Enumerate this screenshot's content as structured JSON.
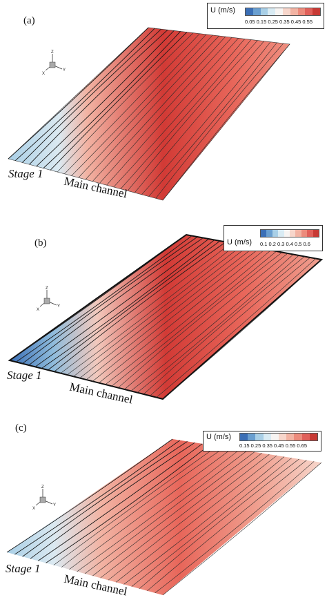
{
  "panels": [
    {
      "letter": "(a)",
      "stage_label": "Stage 1",
      "channel_label": "Main channel",
      "legend_title": "U (m/s)",
      "legend_ticks": "0.05  0.15  0.25  0.35  0.45  0.55"
    },
    {
      "letter": "(b)",
      "stage_label": "Stage 1",
      "channel_label": "Main channel",
      "legend_title": "U (m/s)",
      "legend_ticks": "0.1 0.2 0.3 0.4 0.5 0.6"
    },
    {
      "letter": "(c)",
      "stage_label": "Stage 1",
      "channel_label": "Main channel",
      "legend_title": "U (m/s)",
      "legend_ticks": "0.15  0.25  0.35  0.45  0.55  0.65"
    }
  ],
  "axis_labels": {
    "z": "Z",
    "y": "Y",
    "x": "X"
  },
  "colors": {
    "blue_dark": "#3b6fb6",
    "blue_light": "#a9cfe6",
    "white": "#f4f1ef",
    "red_light": "#f2b3a3",
    "red_mid": "#e8665a",
    "red_dark": "#d23a35"
  },
  "legend_colors": [
    "#3b6fb6",
    "#6a9fd0",
    "#a9cfe6",
    "#d9ebf3",
    "#f7f4f2",
    "#f7d6cb",
    "#f2b3a3",
    "#ec8b7c",
    "#e0605a",
    "#c83a35"
  ]
}
